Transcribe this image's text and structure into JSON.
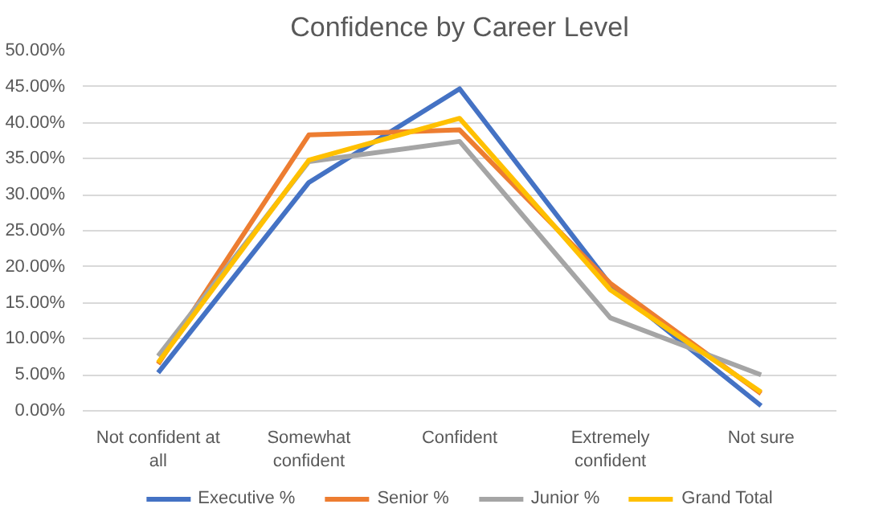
{
  "chart_data": {
    "type": "line",
    "title": "Confidence by Career Level",
    "categories": [
      "Not confident at all",
      "Somewhat confident",
      "Confident",
      "Extremely confident",
      "Not sure"
    ],
    "series": [
      {
        "name": "Executive %",
        "color": "#4472c4",
        "values": [
          5.3,
          31.7,
          44.7,
          17.5,
          0.7
        ]
      },
      {
        "name": "Senior %",
        "color": "#ed7d31",
        "values": [
          6.5,
          38.3,
          39.0,
          17.7,
          2.4
        ]
      },
      {
        "name": "Junior %",
        "color": "#a5a5a5",
        "values": [
          7.6,
          34.6,
          37.4,
          12.9,
          5.0
        ]
      },
      {
        "name": "Grand Total",
        "color": "#ffc000",
        "values": [
          6.7,
          34.8,
          40.6,
          16.8,
          2.6
        ]
      }
    ],
    "ylim": [
      0,
      50
    ],
    "yticks": [
      {
        "value": 0,
        "label": "0.00%"
      },
      {
        "value": 5,
        "label": "5.00%"
      },
      {
        "value": 10,
        "label": "10.00%"
      },
      {
        "value": 15,
        "label": "15.00%"
      },
      {
        "value": 20,
        "label": "20.00%"
      },
      {
        "value": 25,
        "label": "25.00%"
      },
      {
        "value": 30,
        "label": "30.00%"
      },
      {
        "value": 35,
        "label": "35.00%"
      },
      {
        "value": 40,
        "label": "40.00%"
      },
      {
        "value": 45,
        "label": "45.00%"
      },
      {
        "value": 50,
        "label": "50.00%"
      }
    ],
    "grid": "y",
    "legend": "bottom",
    "marker": "none",
    "line_style": "solid"
  }
}
